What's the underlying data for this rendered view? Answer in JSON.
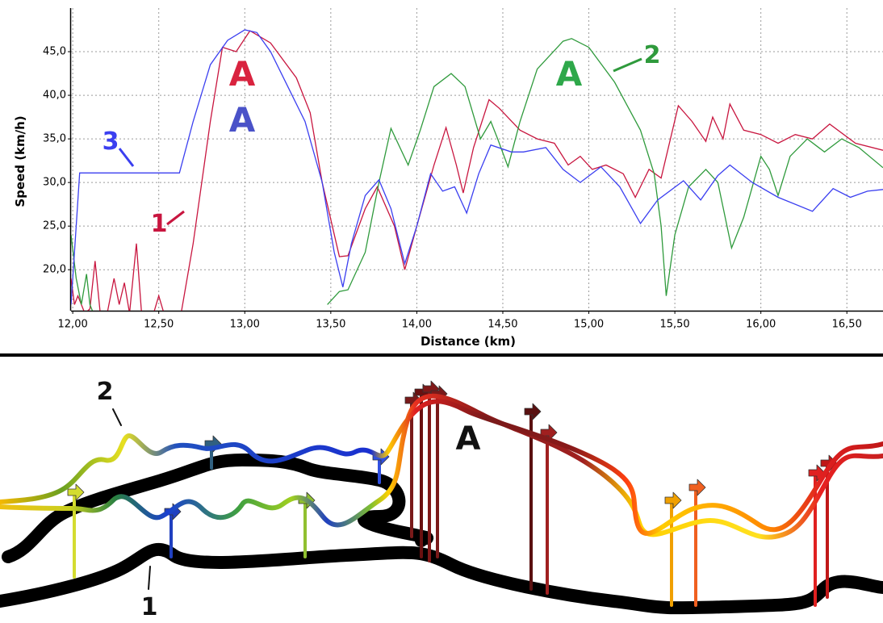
{
  "chart_data": {
    "type": "line",
    "ylabel": "Speed (km/h)",
    "xlabel": "Distance (km)",
    "xlim": [
      11.99,
      16.71
    ],
    "ylim": [
      15.3,
      50
    ],
    "xticks": [
      {
        "value": 12,
        "label": "12,00"
      },
      {
        "value": 12.5,
        "label": "12,50"
      },
      {
        "value": 13,
        "label": "13,00"
      },
      {
        "value": 13.5,
        "label": "13,50"
      },
      {
        "value": 14,
        "label": "14,00"
      },
      {
        "value": 14.5,
        "label": "14,50"
      },
      {
        "value": 15,
        "label": "15,00"
      },
      {
        "value": 15.5,
        "label": "15,50"
      },
      {
        "value": 16,
        "label": "16,00"
      },
      {
        "value": 16.5,
        "label": "16,50"
      }
    ],
    "yticks": [
      {
        "value": 20,
        "label": "20,0"
      },
      {
        "value": 25,
        "label": "25,0"
      },
      {
        "value": 30,
        "label": "30,0"
      },
      {
        "value": 35,
        "label": "35,0"
      },
      {
        "value": 40,
        "label": "40,0"
      },
      {
        "value": 45,
        "label": "45,0"
      }
    ],
    "grid": true,
    "series": [
      {
        "name": "1",
        "color": "#c8163f",
        "x": [
          11.99,
          12.01,
          12.03,
          12.07,
          12.1,
          12.13,
          12.16,
          12.2,
          12.24,
          12.27,
          12.3,
          12.33,
          12.37,
          12.4,
          12.47,
          12.5,
          12.53,
          12.63,
          12.7,
          12.8,
          12.87,
          12.95,
          13.03,
          13.15,
          13.3,
          13.38,
          13.45,
          13.55,
          13.6,
          13.7,
          13.77,
          13.87,
          13.93,
          14.0,
          14.1,
          14.17,
          14.23,
          14.27,
          14.33,
          14.42,
          14.48,
          14.6,
          14.7,
          14.8,
          14.88,
          14.95,
          15.02,
          15.1,
          15.2,
          15.27,
          15.35,
          15.42,
          15.52,
          15.6,
          15.68,
          15.72,
          15.78,
          15.82,
          15.9,
          16.0,
          16.1,
          16.2,
          16.3,
          16.4,
          16.55,
          16.71
        ],
        "values": [
          19,
          16,
          17,
          15,
          15.5,
          21,
          15,
          15,
          19,
          16,
          18.5,
          15,
          23,
          15,
          15,
          17,
          15,
          15,
          23,
          37,
          45.5,
          45,
          47.4,
          46,
          42,
          38,
          30,
          21.5,
          21.6,
          27,
          29.5,
          25,
          20,
          25,
          32,
          36.3,
          32,
          28.8,
          34,
          39.5,
          38.5,
          36,
          35,
          34.5,
          32,
          33,
          31.5,
          32,
          31,
          28.3,
          31.5,
          30.5,
          38.8,
          37,
          34.7,
          37.5,
          35,
          39,
          36,
          35.5,
          34.5,
          35.5,
          35,
          36.7,
          34.5,
          33.7
        ]
      },
      {
        "name": "2",
        "color": "#2f9a3c",
        "x": [
          11.99,
          12.02,
          12.05,
          12.08,
          12.1,
          12.12,
          12.8,
          13.48,
          13.55,
          13.6,
          13.7,
          13.78,
          13.85,
          13.95,
          14.02,
          14.1,
          14.2,
          14.28,
          14.37,
          14.43,
          14.47,
          14.53,
          14.6,
          14.7,
          14.85,
          14.9,
          15.0,
          15.15,
          15.3,
          15.38,
          15.42,
          15.45,
          15.5,
          15.58,
          15.68,
          15.75,
          15.83,
          15.9,
          16.0,
          16.05,
          16.1,
          16.17,
          16.27,
          16.37,
          16.47,
          16.57,
          16.71
        ],
        "values": [
          24,
          19,
          16,
          19.5,
          16,
          15,
          null,
          16,
          17.5,
          17.7,
          22,
          30,
          36.2,
          32,
          36,
          41,
          42.5,
          41,
          35,
          37,
          35,
          31.8,
          37,
          43,
          46.2,
          46.5,
          45.5,
          41.5,
          36,
          31,
          25,
          17,
          24,
          29.5,
          31.5,
          30,
          22.5,
          26,
          33,
          31.5,
          28.5,
          33,
          35,
          33.5,
          35,
          34,
          31.7
        ]
      },
      {
        "name": "3",
        "color": "#3b3ff0",
        "x": [
          11.99,
          12.02,
          12.04,
          12.62,
          12.7,
          12.8,
          12.9,
          13.0,
          13.07,
          13.15,
          13.25,
          13.35,
          13.45,
          13.52,
          13.57,
          13.62,
          13.7,
          13.78,
          13.85,
          13.93,
          14.0,
          14.08,
          14.15,
          14.22,
          14.29,
          14.36,
          14.43,
          14.55,
          14.62,
          14.75,
          14.85,
          14.95,
          15.07,
          15.18,
          15.3,
          15.4,
          15.55,
          15.65,
          15.75,
          15.82,
          15.95,
          16.1,
          16.3,
          16.42,
          16.52,
          16.62,
          16.71
        ],
        "values": [
          16,
          25,
          31.1,
          31.1,
          37,
          43.5,
          46.3,
          47.5,
          47.2,
          45,
          41,
          37,
          30,
          22,
          18,
          23,
          28.5,
          30.3,
          27,
          20.7,
          25,
          31,
          29,
          29.5,
          26.5,
          31,
          34.3,
          33.5,
          33.5,
          34,
          31.5,
          30,
          31.8,
          29.5,
          25.3,
          28,
          30.2,
          28,
          30.8,
          32,
          30,
          28.3,
          26.7,
          29.3,
          28.3,
          29,
          29.2
        ]
      }
    ],
    "annotations": [
      {
        "text": "A",
        "color": "#d9233f"
      },
      {
        "text": "A",
        "color": "#4a52c8"
      },
      {
        "text": "A",
        "color": "#2ea84a"
      }
    ]
  },
  "drawing": {
    "labels": [
      "2",
      "1",
      "A"
    ]
  }
}
